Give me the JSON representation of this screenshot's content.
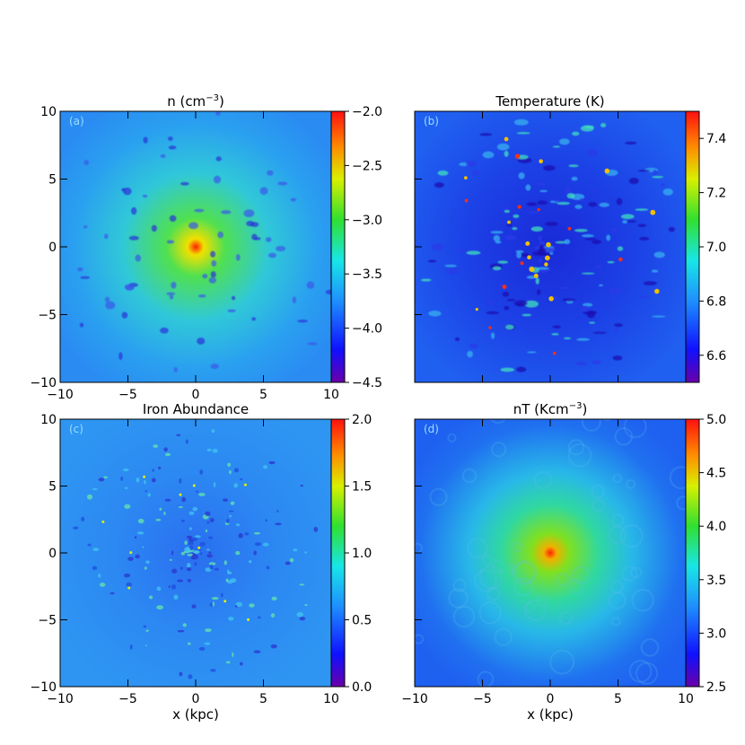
{
  "chart_data": [
    {
      "type": "heatmap",
      "panel_label": "(a)",
      "title": "n (cm⁻³)",
      "title_main": "n (cm",
      "title_sup": "−3",
      "title_tail": ")",
      "xlabel": "",
      "ylabel": "",
      "xlim": [
        -10,
        10
      ],
      "ylim": [
        -10,
        10
      ],
      "x_ticks": [
        "−10",
        "−5",
        "0",
        "5",
        "10"
      ],
      "y_ticks": [
        "10",
        "5",
        "0",
        "−5",
        "−10"
      ],
      "colorbar": {
        "range": [
          -4.5,
          -2.0
        ],
        "ticks": [
          "−2.0",
          "−2.5",
          "−3.0",
          "−3.5",
          "−4.0",
          "−4.5"
        ],
        "values": [
          -2.0,
          -2.5,
          -3.0,
          -3.5,
          -4.0,
          -4.5
        ]
      },
      "colormap": "rainbow",
      "field": "central-peak"
    },
    {
      "type": "heatmap",
      "panel_label": "(b)",
      "title": "Temperature (K)",
      "title_main": "Temperature (K)",
      "title_sup": "",
      "title_tail": "",
      "xlabel": "",
      "ylabel": "",
      "xlim": [
        -10,
        10
      ],
      "ylim": [
        -10,
        10
      ],
      "x_ticks": [
        "",
        "",
        "",
        "",
        ""
      ],
      "y_ticks": [
        "",
        "",
        "",
        "",
        ""
      ],
      "colorbar": {
        "range": [
          6.5,
          7.5
        ],
        "ticks": [
          "7.4",
          "7.2",
          "7.0",
          "6.8",
          "6.6"
        ],
        "values": [
          7.4,
          7.2,
          7.0,
          6.8,
          6.6
        ]
      },
      "colormap": "rainbow",
      "field": "turbulent-hotspots"
    },
    {
      "type": "heatmap",
      "panel_label": "(c)",
      "title": "Iron Abundance",
      "title_main": "Iron Abundance",
      "title_sup": "",
      "title_tail": "",
      "xlabel": "x (kpc)",
      "ylabel": "",
      "xlim": [
        -10,
        10
      ],
      "ylim": [
        -10,
        10
      ],
      "x_ticks": [
        "−10",
        "−5",
        "0",
        "5",
        "10"
      ],
      "y_ticks": [
        "10",
        "5",
        "0",
        "−5",
        "−10"
      ],
      "colorbar": {
        "range": [
          0.0,
          2.0
        ],
        "ticks": [
          "2.0",
          "1.5",
          "1.0",
          "0.5",
          "0.0"
        ],
        "values": [
          2.0,
          1.5,
          1.0,
          0.5,
          0.0
        ]
      },
      "colormap": "rainbow",
      "field": "speckled"
    },
    {
      "type": "heatmap",
      "panel_label": "(d)",
      "title": "nT (Kcm⁻³)",
      "title_main": "nT (Kcm",
      "title_sup": "−3",
      "title_tail": ")",
      "xlabel": "x (kpc)",
      "ylabel": "",
      "xlim": [
        -10,
        10
      ],
      "ylim": [
        -10,
        10
      ],
      "x_ticks": [
        "−10",
        "−5",
        "0",
        "5",
        "10"
      ],
      "y_ticks": [
        "",
        "",
        "",
        "",
        ""
      ],
      "colorbar": {
        "range": [
          2.5,
          5.0
        ],
        "ticks": [
          "5.0",
          "4.5",
          "4.0",
          "3.5",
          "3.0",
          "2.5"
        ],
        "values": [
          5.0,
          4.5,
          4.0,
          3.5,
          3.0,
          2.5
        ]
      },
      "colormap": "rainbow",
      "field": "smooth-peak"
    }
  ]
}
